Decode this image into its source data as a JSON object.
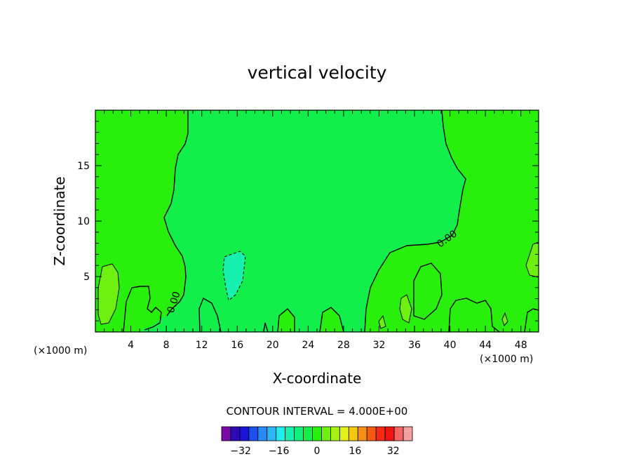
{
  "chart_data": {
    "type": "contour",
    "title": "vertical velocity",
    "xlabel": "X-coordinate",
    "ylabel": "Z-coordinate",
    "x_unit": "(×1000 m)",
    "y_unit": "(×1000 m)",
    "xlim": [
      0,
      50
    ],
    "ylim": [
      0,
      20
    ],
    "x_ticks": [
      "4",
      "8",
      "12",
      "16",
      "20",
      "24",
      "28",
      "32",
      "36",
      "40",
      "44",
      "48"
    ],
    "y_ticks": [
      "5",
      "10",
      "15"
    ],
    "contour_interval_text": "CONTOUR INTERVAL = 4.000E+00",
    "contour_label": "0.00",
    "colorbar": {
      "tick_labels": [
        "−32",
        "−16",
        "0",
        "16",
        "32"
      ],
      "colors": [
        "#7a0aa8",
        "#2c0ab5",
        "#1a14d6",
        "#1e50f0",
        "#2a8af5",
        "#2ab8f5",
        "#22ecec",
        "#18f0b0",
        "#14ee7a",
        "#12ee4a",
        "#28f00c",
        "#6ef010",
        "#a8f014",
        "#e2f01c",
        "#f5c814",
        "#f59014",
        "#f55c10",
        "#f52a14",
        "#f01414",
        "#f56464",
        "#f5a0a0"
      ]
    },
    "regions": [
      {
        "name": "background",
        "level": 0,
        "color": "#12ee4a"
      },
      {
        "name": "positive-0-4",
        "level": 2,
        "color": "#28f00c"
      },
      {
        "name": "positive-4-8",
        "level": 6,
        "color": "#6ef010"
      },
      {
        "name": "negative-0-4",
        "level": -2,
        "color": "#18f0b0"
      }
    ]
  }
}
